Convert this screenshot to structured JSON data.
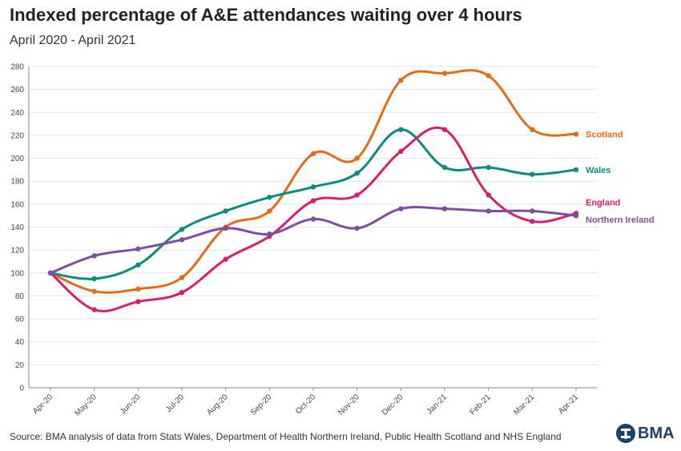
{
  "header": {
    "title": "Indexed percentage of A&E attendances waiting over 4 hours",
    "subtitle": "April 2020 - April 2021"
  },
  "footer": {
    "source": "Source: BMA analysis of data from Stats Wales, Department of Health Northern Ireland, Public Health Scotland and NHS England",
    "logo_text": "BMA"
  },
  "chart_data": {
    "type": "line",
    "title": "Indexed percentage of A&E attendances waiting over 4 hours",
    "subtitle": "April 2020 - April 2021",
    "xlabel": "",
    "ylabel": "",
    "ylim": [
      0,
      280
    ],
    "yticks": [
      0,
      20,
      40,
      60,
      80,
      100,
      120,
      140,
      160,
      180,
      200,
      220,
      240,
      260,
      280
    ],
    "grid": "horizontal",
    "legend": "direct labels at line ends",
    "categories": [
      "Apr-20",
      "May-20",
      "Jun-20",
      "Jul-20",
      "Aug-20",
      "Sep-20",
      "Oct-20",
      "Nov-20",
      "Dec-20",
      "Jan-21",
      "Feb-21",
      "Mar-21",
      "Apr-21"
    ],
    "series": [
      {
        "name": "Scotland",
        "color": "#e36c1c",
        "values": [
          100,
          84,
          86,
          96,
          140,
          154,
          204,
          200,
          268,
          274,
          272,
          225,
          221
        ]
      },
      {
        "name": "Wales",
        "color": "#0e8a7e",
        "values": [
          100,
          95,
          107,
          138,
          154,
          166,
          175,
          187,
          225,
          192,
          192,
          186,
          190
        ]
      },
      {
        "name": "England",
        "color": "#d81e6e",
        "values": [
          100,
          68,
          75,
          83,
          112,
          132,
          163,
          168,
          206,
          225,
          168,
          145,
          152
        ]
      },
      {
        "name": "Northern Ireland",
        "color": "#7f4ea0",
        "values": [
          100,
          115,
          121,
          129,
          139,
          134,
          147,
          139,
          156,
          156,
          154,
          154,
          150
        ]
      }
    ]
  }
}
